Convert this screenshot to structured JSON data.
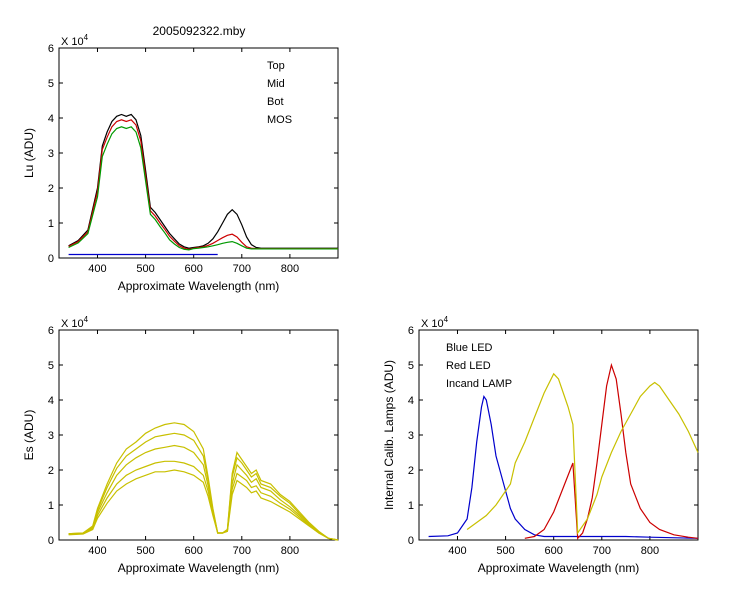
{
  "figure_title": "2005092322.mby",
  "exponent_base": "X 10",
  "exponent_power": "4",
  "chart_data": [
    {
      "id": "lu",
      "type": "line",
      "title": "2005092322.mby",
      "xlabel": "Approximate Wavelength (nm)",
      "ylabel": "Lu (ADU)",
      "xlim": [
        320,
        900
      ],
      "ylim": [
        0,
        6
      ],
      "y_multiplier": "X 10^4",
      "xticks": [
        400,
        500,
        600,
        700,
        800
      ],
      "yticks": [
        0,
        1,
        2,
        3,
        4,
        5,
        6
      ],
      "legend": "top-right",
      "series": [
        {
          "name": "Top",
          "color": "#000000",
          "x": [
            340,
            360,
            380,
            400,
            410,
            420,
            430,
            440,
            450,
            460,
            470,
            480,
            490,
            500,
            510,
            520,
            530,
            540,
            550,
            560,
            570,
            580,
            590,
            600,
            610,
            620,
            630,
            640,
            650,
            660,
            670,
            680,
            690,
            700,
            710,
            720,
            730,
            740,
            760,
            800,
            850,
            900
          ],
          "y": [
            0.35,
            0.5,
            0.8,
            2.0,
            3.2,
            3.6,
            3.9,
            4.05,
            4.1,
            4.05,
            4.1,
            3.95,
            3.5,
            2.5,
            1.45,
            1.3,
            1.1,
            0.9,
            0.7,
            0.55,
            0.4,
            0.32,
            0.28,
            0.3,
            0.32,
            0.35,
            0.42,
            0.55,
            0.75,
            1.0,
            1.25,
            1.38,
            1.25,
            0.95,
            0.6,
            0.38,
            0.3,
            0.28,
            0.28,
            0.28,
            0.28,
            0.28
          ]
        },
        {
          "name": "Mid",
          "color": "#cc0000",
          "x": [
            340,
            360,
            380,
            400,
            410,
            420,
            430,
            440,
            450,
            460,
            470,
            480,
            490,
            500,
            510,
            520,
            530,
            540,
            550,
            560,
            570,
            580,
            590,
            600,
            610,
            620,
            630,
            640,
            650,
            660,
            670,
            680,
            690,
            700,
            710,
            720,
            730,
            740,
            760,
            800,
            850,
            900
          ],
          "y": [
            0.33,
            0.47,
            0.75,
            1.9,
            3.1,
            3.45,
            3.75,
            3.9,
            3.95,
            3.9,
            3.95,
            3.8,
            3.35,
            2.35,
            1.35,
            1.2,
            1.0,
            0.82,
            0.62,
            0.48,
            0.35,
            0.28,
            0.25,
            0.28,
            0.3,
            0.32,
            0.36,
            0.42,
            0.5,
            0.58,
            0.65,
            0.68,
            0.6,
            0.45,
            0.32,
            0.28,
            0.27,
            0.27,
            0.27,
            0.27,
            0.27,
            0.27
          ]
        },
        {
          "name": "Bot",
          "color": "#009900",
          "x": [
            340,
            360,
            380,
            400,
            410,
            420,
            430,
            440,
            450,
            460,
            470,
            480,
            490,
            500,
            510,
            520,
            530,
            540,
            550,
            560,
            570,
            580,
            590,
            600,
            610,
            620,
            630,
            640,
            650,
            660,
            670,
            680,
            690,
            700,
            710,
            720,
            730,
            740,
            760,
            800,
            850,
            900
          ],
          "y": [
            0.3,
            0.43,
            0.7,
            1.75,
            2.9,
            3.25,
            3.55,
            3.7,
            3.75,
            3.7,
            3.75,
            3.6,
            3.15,
            2.2,
            1.25,
            1.1,
            0.9,
            0.72,
            0.52,
            0.4,
            0.3,
            0.25,
            0.23,
            0.27,
            0.28,
            0.3,
            0.32,
            0.35,
            0.38,
            0.42,
            0.45,
            0.47,
            0.42,
            0.35,
            0.28,
            0.26,
            0.26,
            0.26,
            0.26,
            0.26,
            0.26,
            0.26
          ]
        },
        {
          "name": "MOS",
          "color": "#0000cc",
          "x": [
            340,
            400,
            500,
            600,
            650
          ],
          "y": [
            0.1,
            0.1,
            0.1,
            0.1,
            0.1
          ]
        }
      ]
    },
    {
      "id": "es",
      "type": "line",
      "title": "",
      "xlabel": "Approximate Wavelength (nm)",
      "ylabel": "Es  (ADU)",
      "xlim": [
        320,
        900
      ],
      "ylim": [
        0,
        6
      ],
      "y_multiplier": "X 10^4",
      "xticks": [
        400,
        500,
        600,
        700,
        800
      ],
      "yticks": [
        0,
        1,
        2,
        3,
        4,
        5,
        6
      ],
      "color": "#c8c000",
      "series": [
        {
          "x": [
            340,
            370,
            390,
            400,
            420,
            440,
            460,
            480,
            500,
            520,
            540,
            560,
            580,
            600,
            620,
            630,
            640,
            650,
            660,
            670,
            680,
            690,
            700,
            710,
            720,
            730,
            740,
            760,
            780,
            800,
            820,
            840,
            860,
            880,
            900
          ],
          "y": [
            0.18,
            0.2,
            0.4,
            0.9,
            1.6,
            2.2,
            2.6,
            2.8,
            3.05,
            3.2,
            3.3,
            3.35,
            3.3,
            3.1,
            2.6,
            1.8,
            0.9,
            0.2,
            0.2,
            0.3,
            1.9,
            2.5,
            2.3,
            2.1,
            1.9,
            2.0,
            1.7,
            1.6,
            1.3,
            1.1,
            0.8,
            0.5,
            0.25,
            0.05,
            0.0
          ]
        },
        {
          "x": [
            340,
            370,
            390,
            400,
            420,
            440,
            460,
            480,
            500,
            520,
            540,
            560,
            580,
            600,
            620,
            630,
            640,
            650,
            660,
            670,
            680,
            690,
            700,
            710,
            720,
            730,
            740,
            760,
            780,
            800,
            820,
            840,
            860,
            880,
            900
          ],
          "y": [
            0.18,
            0.2,
            0.38,
            0.85,
            1.5,
            2.05,
            2.4,
            2.6,
            2.8,
            2.95,
            3.0,
            3.05,
            3.0,
            2.85,
            2.4,
            1.7,
            0.85,
            0.2,
            0.2,
            0.3,
            1.8,
            2.35,
            2.2,
            2.0,
            1.8,
            1.9,
            1.6,
            1.5,
            1.25,
            1.05,
            0.75,
            0.48,
            0.24,
            0.05,
            0.0
          ]
        },
        {
          "x": [
            340,
            370,
            390,
            400,
            420,
            440,
            460,
            480,
            500,
            520,
            540,
            560,
            580,
            600,
            620,
            630,
            640,
            650,
            660,
            670,
            680,
            690,
            700,
            710,
            720,
            730,
            740,
            760,
            780,
            800,
            820,
            840,
            860,
            880,
            900
          ],
          "y": [
            0.17,
            0.19,
            0.35,
            0.78,
            1.35,
            1.85,
            2.15,
            2.35,
            2.5,
            2.6,
            2.65,
            2.7,
            2.65,
            2.5,
            2.15,
            1.55,
            0.8,
            0.2,
            0.2,
            0.28,
            1.6,
            2.15,
            2.0,
            1.85,
            1.65,
            1.75,
            1.5,
            1.4,
            1.15,
            0.95,
            0.7,
            0.45,
            0.22,
            0.05,
            0.0
          ]
        },
        {
          "x": [
            340,
            370,
            390,
            400,
            420,
            440,
            460,
            480,
            500,
            520,
            540,
            560,
            580,
            600,
            620,
            630,
            640,
            650,
            660,
            670,
            680,
            690,
            700,
            710,
            720,
            730,
            740,
            760,
            780,
            800,
            820,
            840,
            860,
            880,
            900
          ],
          "y": [
            0.16,
            0.18,
            0.32,
            0.7,
            1.2,
            1.6,
            1.85,
            2.0,
            2.1,
            2.2,
            2.25,
            2.25,
            2.2,
            2.1,
            1.85,
            1.4,
            0.75,
            0.2,
            0.2,
            0.25,
            1.45,
            1.9,
            1.8,
            1.7,
            1.5,
            1.55,
            1.35,
            1.25,
            1.05,
            0.88,
            0.65,
            0.42,
            0.2,
            0.05,
            0.0
          ]
        },
        {
          "x": [
            340,
            370,
            390,
            400,
            420,
            440,
            460,
            480,
            500,
            520,
            540,
            560,
            580,
            600,
            620,
            630,
            640,
            650,
            660,
            670,
            680,
            690,
            700,
            710,
            720,
            730,
            740,
            760,
            780,
            800,
            820,
            840,
            860,
            880,
            900
          ],
          "y": [
            0.15,
            0.17,
            0.3,
            0.62,
            1.05,
            1.4,
            1.6,
            1.75,
            1.85,
            1.95,
            1.95,
            2.0,
            1.95,
            1.85,
            1.65,
            1.25,
            0.7,
            0.2,
            0.2,
            0.25,
            1.3,
            1.7,
            1.6,
            1.5,
            1.35,
            1.4,
            1.2,
            1.1,
            0.95,
            0.8,
            0.6,
            0.4,
            0.2,
            0.05,
            0.0
          ]
        }
      ]
    },
    {
      "id": "lamps",
      "type": "line",
      "title": "",
      "xlabel": "Approximate Wavelength (nm)",
      "ylabel": "Internal Calib. Lamps (ADU)",
      "xlim": [
        320,
        900
      ],
      "ylim": [
        0,
        6
      ],
      "y_multiplier": "X 10^4",
      "xticks": [
        400,
        500,
        600,
        700,
        800
      ],
      "yticks": [
        0,
        1,
        2,
        3,
        4,
        5,
        6
      ],
      "legend": "top-left",
      "series": [
        {
          "name": "Blue LED",
          "color": "#0000cc",
          "x": [
            340,
            380,
            400,
            420,
            430,
            440,
            450,
            455,
            460,
            470,
            480,
            490,
            500,
            510,
            520,
            540,
            560,
            580,
            600,
            650,
            700,
            750,
            800,
            900
          ],
          "y": [
            0.1,
            0.12,
            0.2,
            0.6,
            1.5,
            2.8,
            3.8,
            4.1,
            4.0,
            3.3,
            2.4,
            1.9,
            1.4,
            0.9,
            0.6,
            0.3,
            0.15,
            0.1,
            0.1,
            0.1,
            0.1,
            0.1,
            0.08,
            0.05
          ]
        },
        {
          "name": "Red LED",
          "color": "#cc0000",
          "x": [
            540,
            560,
            580,
            600,
            620,
            640,
            650,
            660,
            670,
            680,
            690,
            700,
            710,
            720,
            730,
            740,
            750,
            760,
            780,
            800,
            820,
            850,
            880,
            900
          ],
          "y": [
            0.05,
            0.1,
            0.3,
            0.8,
            1.5,
            2.2,
            0.05,
            0.2,
            0.6,
            1.2,
            2.2,
            3.3,
            4.4,
            5.0,
            4.6,
            3.6,
            2.5,
            1.6,
            0.9,
            0.5,
            0.3,
            0.15,
            0.08,
            0.05
          ]
        },
        {
          "name": "Incand LAMP",
          "color": "#c8c000",
          "x": [
            420,
            440,
            460,
            480,
            500,
            510,
            520,
            540,
            560,
            580,
            600,
            610,
            620,
            630,
            640,
            650,
            670,
            690,
            700,
            720,
            740,
            760,
            780,
            800,
            810,
            820,
            840,
            860,
            880,
            900
          ],
          "y": [
            0.3,
            0.5,
            0.7,
            1.0,
            1.4,
            1.6,
            2.2,
            2.8,
            3.5,
            4.2,
            4.75,
            4.6,
            4.2,
            3.8,
            3.3,
            0.2,
            0.6,
            1.3,
            1.8,
            2.5,
            3.1,
            3.6,
            4.1,
            4.4,
            4.5,
            4.4,
            4.0,
            3.6,
            3.1,
            2.5
          ]
        }
      ]
    }
  ]
}
